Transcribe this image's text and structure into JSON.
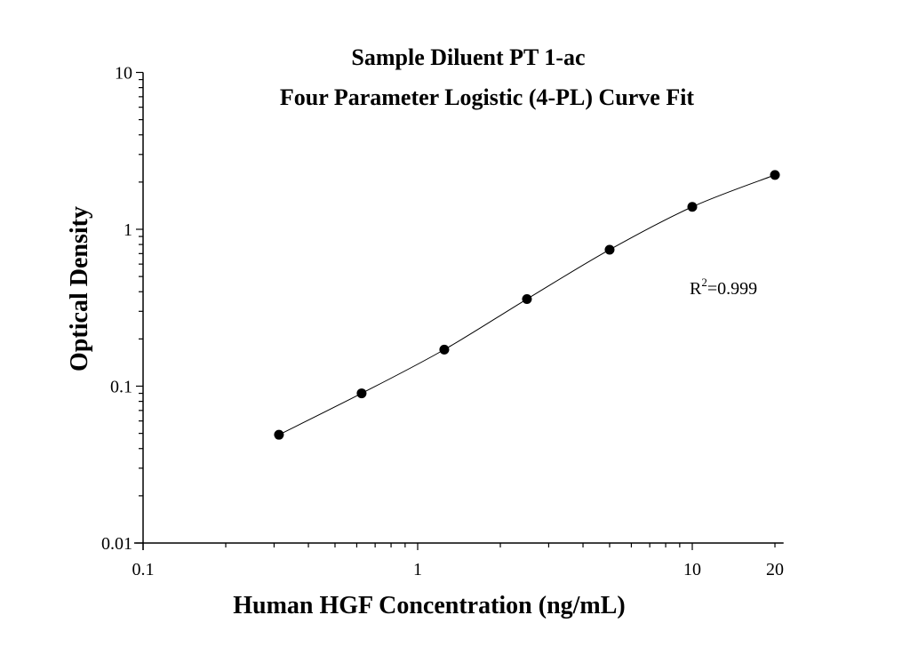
{
  "chart_data": {
    "type": "scatter",
    "title": [
      "Sample Diluent PT 1-ac",
      "Four Parameter Logistic (4-PL) Curve Fit"
    ],
    "xlabel": "Human HGF Concentration (ng/mL)",
    "ylabel": "Optical Density",
    "x_scale": "log",
    "y_scale": "log",
    "xlim": [
      0.1,
      21.5
    ],
    "ylim": [
      0.01,
      10
    ],
    "x_ticks": [
      {
        "value": 0.1,
        "label": "0.1"
      },
      {
        "value": 1,
        "label": "1"
      },
      {
        "value": 10,
        "label": "10"
      },
      {
        "value": 20,
        "label": "20"
      }
    ],
    "y_ticks": [
      {
        "value": 0.01,
        "label": "0.01"
      },
      {
        "value": 0.1,
        "label": "0.1"
      },
      {
        "value": 1,
        "label": "1"
      },
      {
        "value": 10,
        "label": "10"
      }
    ],
    "grid": false,
    "points": {
      "x": [
        0.3125,
        0.625,
        1.25,
        2.5,
        5,
        10,
        20
      ],
      "y": [
        0.049,
        0.09,
        0.171,
        0.359,
        0.741,
        1.39,
        2.22
      ]
    },
    "fit": "4-PL curve",
    "annotation": {
      "text_base": "R",
      "superscript": "2",
      "text_rest": "=0.999"
    },
    "colors": {
      "points": "#000000",
      "line": "#000000"
    }
  }
}
